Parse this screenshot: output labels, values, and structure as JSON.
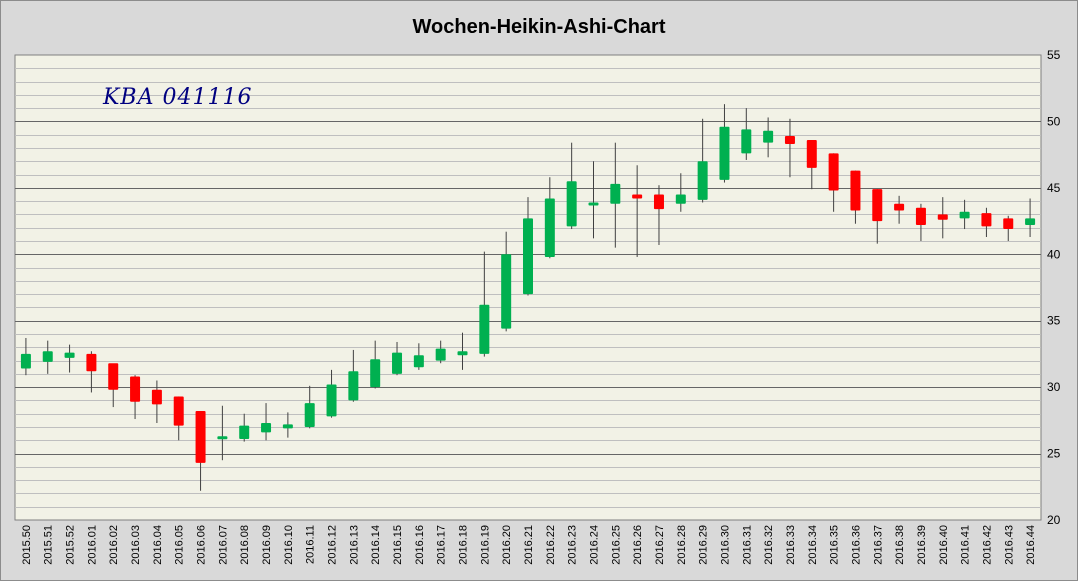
{
  "chart_data": {
    "type": "candlestick",
    "title": "Wochen-Heikin-Ashi-Chart",
    "annotation": "KBA 041116",
    "ylim": [
      20,
      55
    ],
    "yticks": [
      20,
      25,
      30,
      35,
      40,
      45,
      50,
      55
    ],
    "grid": true,
    "colors": {
      "up": "#00b050",
      "down": "#ff0000",
      "plot_background": "#f2f2e6",
      "outer_background": "#d9d9d9",
      "minor_grid": "#bfbfbf",
      "major_grid": "#666666",
      "annotation": "#000080"
    },
    "categories": [
      "2015.50",
      "2015.51",
      "2015.52",
      "2016.01",
      "2016.02",
      "2016.03",
      "2016.04",
      "2016.05",
      "2016.06",
      "2016.07",
      "2016.08",
      "2016.09",
      "2016.10",
      "2016.11",
      "2016.12",
      "2016.13",
      "2016.14",
      "2016.15",
      "2016.16",
      "2016.17",
      "2016.18",
      "2016.19",
      "2016.20",
      "2016.21",
      "2016.22",
      "2016.23",
      "2016.24",
      "2016.25",
      "2016.26",
      "2016.27",
      "2016.28",
      "2016.29",
      "2016.30",
      "2016.31",
      "2016.32",
      "2016.33",
      "2016.34",
      "2016.35",
      "2016.36",
      "2016.37",
      "2016.38",
      "2016.39",
      "2016.40",
      "2016.41",
      "2016.42",
      "2016.43",
      "2016.44"
    ],
    "open": [
      31.4,
      31.9,
      32.2,
      32.5,
      31.8,
      30.8,
      29.8,
      29.3,
      28.2,
      26.2,
      26.1,
      26.6,
      26.9,
      27.0,
      27.8,
      29.0,
      30.0,
      31.0,
      31.5,
      32.0,
      32.4,
      32.5,
      34.4,
      37.0,
      39.8,
      42.1,
      43.7,
      43.8,
      44.5,
      44.5,
      43.8,
      44.1,
      45.6,
      47.6,
      48.4,
      48.9,
      48.6,
      47.6,
      46.3,
      44.9,
      43.8,
      43.5,
      43.0,
      42.7,
      43.1,
      42.7,
      42.2
    ],
    "close": [
      32.5,
      32.7,
      32.6,
      31.2,
      29.8,
      28.9,
      28.7,
      27.1,
      24.3,
      26.3,
      27.1,
      27.3,
      27.2,
      28.8,
      30.2,
      31.2,
      32.1,
      32.6,
      32.4,
      32.9,
      32.7,
      36.2,
      40.0,
      42.7,
      44.2,
      45.5,
      43.9,
      45.3,
      44.2,
      43.4,
      44.5,
      47.0,
      49.6,
      49.4,
      49.3,
      48.3,
      46.5,
      44.8,
      43.3,
      42.5,
      43.3,
      42.2,
      42.6,
      43.2,
      42.1,
      41.9,
      42.7
    ],
    "high": [
      33.7,
      33.5,
      33.2,
      32.7,
      31.7,
      30.9,
      30.5,
      29.3,
      28.2,
      28.6,
      28.0,
      28.8,
      28.1,
      30.1,
      31.3,
      32.8,
      33.5,
      33.4,
      33.3,
      33.5,
      34.1,
      40.2,
      41.7,
      44.3,
      45.8,
      48.4,
      47.0,
      48.4,
      46.7,
      45.2,
      46.1,
      50.2,
      51.3,
      51.0,
      50.3,
      50.2,
      48.6,
      47.6,
      46.3,
      44.9,
      44.4,
      43.8,
      44.3,
      44.1,
      43.5,
      42.9,
      44.2
    ],
    "low": [
      30.9,
      31.0,
      31.1,
      29.6,
      28.5,
      27.6,
      27.3,
      26.0,
      22.2,
      24.5,
      25.9,
      26.0,
      26.2,
      26.9,
      27.7,
      28.9,
      29.9,
      30.9,
      31.3,
      31.8,
      31.3,
      32.3,
      34.2,
      36.9,
      39.7,
      41.9,
      41.2,
      40.5,
      39.8,
      40.7,
      43.2,
      43.9,
      45.4,
      47.1,
      47.3,
      45.8,
      44.9,
      43.2,
      42.3,
      40.8,
      42.3,
      41.0,
      41.2,
      41.9,
      41.3,
      41.0,
      41.3
    ]
  }
}
